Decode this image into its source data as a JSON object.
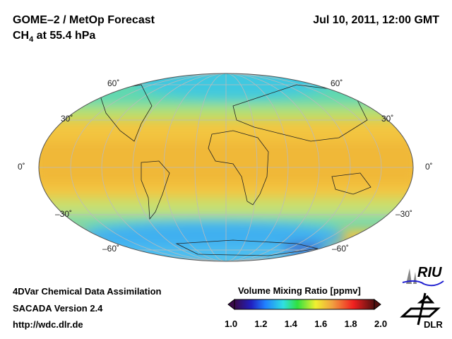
{
  "header": {
    "title": "GOME–2 / MetOp Forecast",
    "species": "CH",
    "species_sub": "4",
    "level": " at 55.4 hPa",
    "datetime": "Jul 10, 2011, 12:00 GMT"
  },
  "map": {
    "lat_labels_left": [
      "60˚",
      "30˚",
      "0˚",
      "–30˚",
      "–60˚"
    ],
    "lat_labels_right": [
      "60˚",
      "30˚",
      "0˚",
      "–30˚",
      "–60˚"
    ]
  },
  "footer": {
    "line1": "4DVar Chemical Data Assimilation",
    "line2": "SACADA Version 2.4",
    "line3": "http://wdc.dlr.de"
  },
  "colorbar": {
    "title": "Volume Mixing Ratio [ppmv]",
    "ticks": [
      "1.0",
      "1.2",
      "1.4",
      "1.6",
      "1.8",
      "2.0"
    ],
    "colors": [
      "#3a0a4a",
      "#2020c0",
      "#2080ff",
      "#30e0e0",
      "#30e040",
      "#f0f030",
      "#f0a040",
      "#f02020",
      "#a01010",
      "#501010"
    ]
  },
  "logos": {
    "riu": "RIU",
    "dlr": "DLR"
  }
}
